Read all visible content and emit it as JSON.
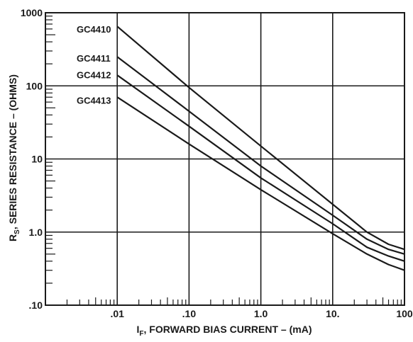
{
  "chart_data": {
    "type": "line",
    "title": "",
    "xlabel_main": "I",
    "xlabel_sub": "F",
    "xlabel_rest": ", FORWARD BIAS CURRENT – (mA)",
    "ylabel_main": "R",
    "ylabel_sub": "S",
    "ylabel_rest": ", SERIES RESISTANCE – (OHMS)",
    "x_scale": "log",
    "y_scale": "log",
    "xlim": [
      0.001,
      100
    ],
    "ylim": [
      0.1,
      1000
    ],
    "x_ticks": [
      {
        "value": 0.01,
        "label": ".01"
      },
      {
        "value": 0.1,
        "label": ".10"
      },
      {
        "value": 1,
        "label": "1.0"
      },
      {
        "value": 10,
        "label": "10."
      },
      {
        "value": 100,
        "label": "100"
      }
    ],
    "y_ticks": [
      {
        "value": 0.1,
        "label": ".10"
      },
      {
        "value": 1,
        "label": "1.0"
      },
      {
        "value": 10,
        "label": "10"
      },
      {
        "value": 100,
        "label": "100"
      },
      {
        "value": 1000,
        "label": "1000"
      }
    ],
    "grid": true,
    "series": [
      {
        "name": "GC4410",
        "x": [
          0.01,
          0.1,
          1,
          10,
          30,
          60,
          100
        ],
        "y": [
          650,
          95,
          15,
          2.4,
          1.0,
          0.68,
          0.58
        ]
      },
      {
        "name": "GC4411",
        "x": [
          0.01,
          0.1,
          1,
          10,
          30,
          60,
          100
        ],
        "y": [
          250,
          45,
          8,
          1.7,
          0.8,
          0.58,
          0.5
        ]
      },
      {
        "name": "GC4412",
        "x": [
          0.01,
          0.1,
          1,
          10,
          30,
          60,
          100
        ],
        "y": [
          140,
          28,
          5.5,
          1.3,
          0.62,
          0.47,
          0.4
        ]
      },
      {
        "name": "GC4413",
        "x": [
          0.01,
          0.1,
          1,
          10,
          30,
          60,
          100
        ],
        "y": [
          70,
          16,
          3.8,
          0.95,
          0.5,
          0.36,
          0.3
        ]
      }
    ],
    "series_label_x": [
      0.0012,
      0.0012,
      0.0012,
      0.0012
    ],
    "series_label_y": [
      600,
      240,
      142,
      64
    ]
  }
}
